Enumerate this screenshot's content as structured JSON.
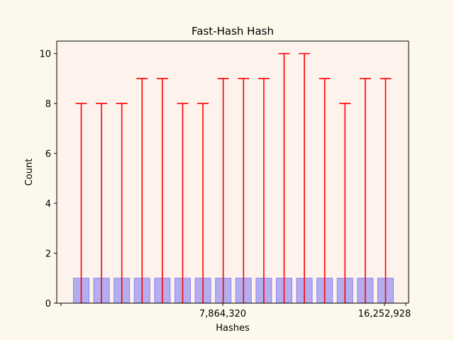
{
  "chart_data": {
    "type": "bar",
    "title": "Fast-Hash Hash",
    "xlabel": "Hashes",
    "ylabel": "Count",
    "ylim": [
      0,
      10.5
    ],
    "yticks": [
      0,
      2,
      4,
      6,
      8,
      10
    ],
    "x_tick_labels": [
      "7,864,320",
      "16,252,928"
    ],
    "bar_values": [
      1,
      1,
      1,
      1,
      1,
      1,
      1,
      1,
      1,
      1,
      1,
      1,
      1,
      1,
      1,
      1
    ],
    "error_upper": [
      8,
      8,
      8,
      9,
      9,
      8,
      8,
      9,
      9,
      9,
      10,
      10,
      9,
      8,
      9,
      9
    ],
    "colors": {
      "figure_bg": "#fdf8ec",
      "plot_bg": "#fdf2ec",
      "bar_fill": "#b3aef0",
      "bar_edge": "#8c84f0",
      "error_bar": "#ff0000"
    },
    "grid": false,
    "legend": "none"
  }
}
